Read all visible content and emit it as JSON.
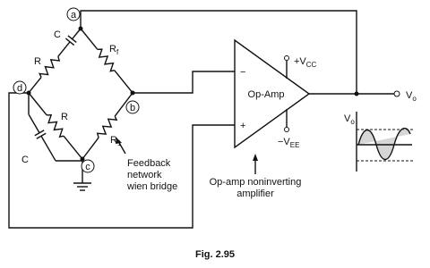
{
  "nodes": [
    "a",
    "b",
    "c",
    "d"
  ],
  "components": {
    "c_series": "C",
    "r_series": "R",
    "rf": {
      "main": "R",
      "sub": "f"
    },
    "r1": {
      "main": "R",
      "sub": "1"
    },
    "r_parallel": "R",
    "c_parallel": "C"
  },
  "opamp": {
    "label": "Op-Amp",
    "minus": "−",
    "plus": "+",
    "vcc": {
      "main": "+V",
      "sub": "CC"
    },
    "vee": {
      "main": "−V",
      "sub": "EE"
    }
  },
  "output": {
    "main": "V",
    "sub": "o"
  },
  "waveform_label": {
    "main": "V",
    "sub": "o"
  },
  "annotations": {
    "feedback": [
      "Feedback",
      "network",
      "wien bridge"
    ],
    "amplifier": [
      "Op-amp noninverting",
      "amplifier"
    ]
  },
  "caption": "Fig. 2.95"
}
